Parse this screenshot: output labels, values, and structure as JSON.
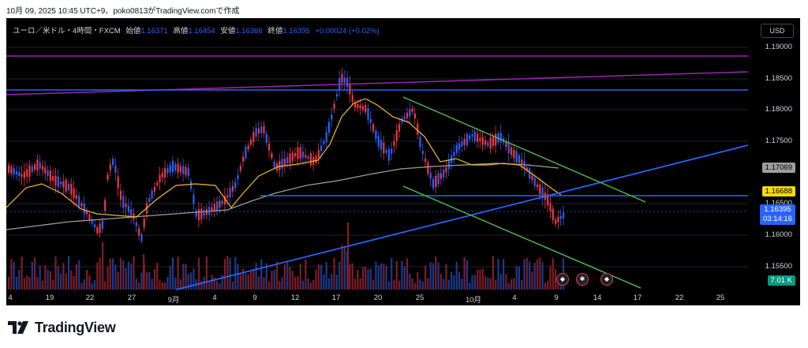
{
  "caption": "10月 09, 2025 10:45 UTC+9、poko0813がTradingView.comで作成",
  "header": {
    "symbol": "ユーロ／米ドル・4時間・FXCM",
    "open_label": "始値",
    "open": "1.16371",
    "high_label": "高値",
    "high": "1.16454",
    "low_label": "安値",
    "low": "1.16366",
    "close_label": "終値",
    "close": "1.16395",
    "change": "+0.00024 (+0.02%)"
  },
  "currency_button": "USD",
  "y_ticks": [
    "1.19000",
    "1.18500",
    "1.18000",
    "1.17500",
    "1.16500",
    "1.16000",
    "1.15500"
  ],
  "price_labels": {
    "ma_slow": "1.17069",
    "hline": "1.16688",
    "last_price": "1.16395",
    "countdown": "03:14:16",
    "volume": "7.01 K"
  },
  "x_ticks": [
    "4",
    "19",
    "22",
    "27",
    "9月",
    "4",
    "9",
    "12",
    "17",
    "20",
    "25",
    "10月",
    "4",
    "9",
    "14",
    "17",
    "22",
    "25"
  ],
  "events": [
    "event-icon",
    "us-flag-icon",
    "event-icon"
  ],
  "brand": "TradingView",
  "colors": {
    "background": "#000000",
    "candle_up": "#2962ff",
    "candle_down": "#f23645",
    "ma_fast": "#f5b82e",
    "ma_slow": "#9e9e9e",
    "trend_blue": "#2962ff",
    "trend_purple": "#9c27b0",
    "channel_green": "#4caf50"
  }
}
